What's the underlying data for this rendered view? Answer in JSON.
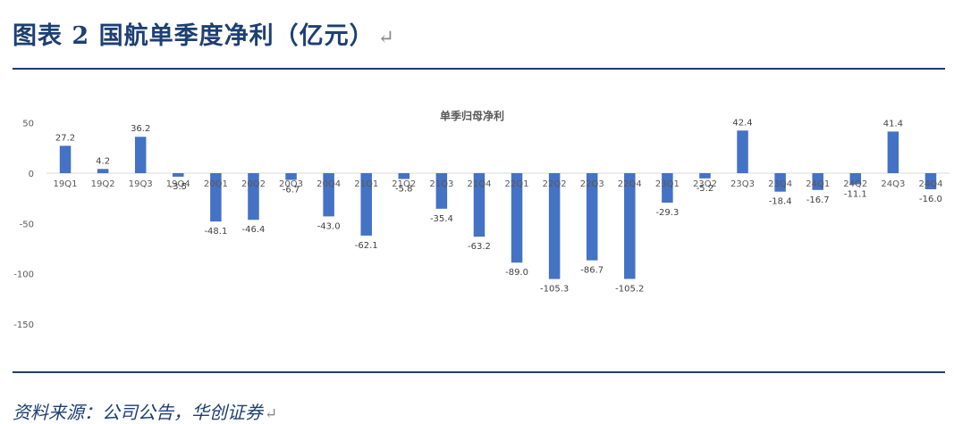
{
  "header": {
    "title": "图表 2   国航单季度净利（亿元）",
    "return_mark": "↵"
  },
  "footer": {
    "source": "资料来源：公司公告，华创证券",
    "return_mark": "↵"
  },
  "colors": {
    "bar": "#4472c4",
    "rule": "#1d3f73",
    "title": "#1d3f73"
  },
  "chart_data": {
    "type": "bar",
    "title": "单季归母净利",
    "xlabel": "",
    "ylabel": "",
    "ylim": [
      -150,
      50
    ],
    "yticks": [
      50,
      0,
      -50,
      -100,
      -150
    ],
    "grid": false,
    "legend": "none",
    "categories": [
      "19Q1",
      "19Q2",
      "19Q3",
      "19Q4",
      "20Q1",
      "20Q2",
      "20Q3",
      "20Q4",
      "21Q1",
      "21Q2",
      "21Q3",
      "21Q4",
      "22Q1",
      "22Q2",
      "22Q3",
      "22Q4",
      "23Q1",
      "23Q2",
      "23Q3",
      "23Q4",
      "24Q1",
      "24Q2",
      "24Q3",
      "24Q4"
    ],
    "values": [
      27.2,
      4.2,
      36.2,
      -3.5,
      -48.1,
      -46.4,
      -6.7,
      -43.0,
      -62.1,
      -5.8,
      -35.4,
      -63.2,
      -89.0,
      -105.3,
      -86.7,
      -105.2,
      -29.3,
      -5.2,
      42.4,
      -18.4,
      -16.7,
      -11.1,
      41.4,
      -16.0
    ],
    "data_labels": [
      "27.2",
      "4.2",
      "36.2",
      "-3.5",
      "-48.1",
      "-46.4",
      "-6.7",
      "-43.0",
      "-62.1",
      "-5.8",
      "-35.4",
      "-63.2",
      "-89.0",
      "-105.3",
      "-86.7",
      "-105.2",
      "-29.3",
      "-5.2",
      "42.4",
      "-18.4",
      "-16.7",
      "-11.1",
      "41.4",
      "-16.0"
    ]
  }
}
